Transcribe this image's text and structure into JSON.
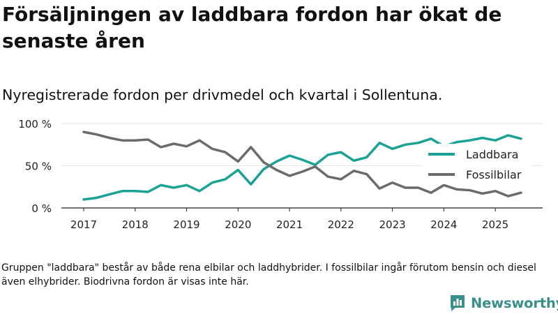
{
  "title": "Försäljningen av laddbara fordon har ökat de senaste åren",
  "subtitle": "Nyregistrerade fordon per drivmedel och kvartal i Sollentuna.",
  "footnote": "Gruppen \"laddbara\" består av både rena elbilar och laddhybrider. I fossilbilar ingår förutom bensin och diesel även elhybrider. Biodrivna fordon är visas inte här.",
  "brand": "Newsworthy",
  "colors": {
    "laddbara": "#1aa394",
    "fossil": "#6b6b6b",
    "grid": "#e6e6e6",
    "brand": "#3a8f8a"
  },
  "chart_data": {
    "type": "line",
    "title": "Nyregistrerade fordon per drivmedel och kvartal i Sollentuna.",
    "xlabel": "",
    "ylabel": "",
    "ylim": [
      0,
      100
    ],
    "xlim": [
      2017,
      2025.5
    ],
    "y_ticks": [
      0,
      50,
      100
    ],
    "y_tick_labels": [
      "0 %",
      "50 %",
      "100 %"
    ],
    "x_ticks": [
      2017,
      2018,
      2019,
      2020,
      2021,
      2022,
      2023,
      2024,
      2025
    ],
    "x_tick_labels": [
      "2017",
      "2018",
      "2019",
      "2020",
      "2021",
      "2022",
      "2023",
      "2024",
      "2025"
    ],
    "legend": "right",
    "grid": true,
    "x": [
      2017,
      2017.25,
      2017.5,
      2017.75,
      2018,
      2018.25,
      2018.5,
      2018.75,
      2019,
      2019.25,
      2019.5,
      2019.75,
      2020,
      2020.25,
      2020.5,
      2020.75,
      2021,
      2021.25,
      2021.5,
      2021.75,
      2022,
      2022.25,
      2022.5,
      2022.75,
      2023,
      2023.25,
      2023.5,
      2023.75,
      2024,
      2024.25,
      2024.5,
      2024.75,
      2025,
      2025.25,
      2025.5
    ],
    "series": [
      {
        "name": "Laddbara",
        "values": [
          10,
          12,
          16,
          20,
          20,
          19,
          27,
          24,
          27,
          20,
          30,
          34,
          45,
          28,
          46,
          55,
          62,
          57,
          51,
          63,
          66,
          56,
          60,
          77,
          70,
          75,
          77,
          82,
          73,
          78,
          80,
          83,
          80,
          86,
          82
        ]
      },
      {
        "name": "Fossilbilar",
        "values": [
          90,
          87,
          83,
          80,
          80,
          81,
          72,
          76,
          73,
          80,
          70,
          66,
          55,
          72,
          54,
          45,
          38,
          43,
          49,
          37,
          34,
          44,
          40,
          23,
          30,
          24,
          24,
          18,
          27,
          22,
          21,
          17,
          20,
          14,
          18
        ]
      }
    ]
  }
}
